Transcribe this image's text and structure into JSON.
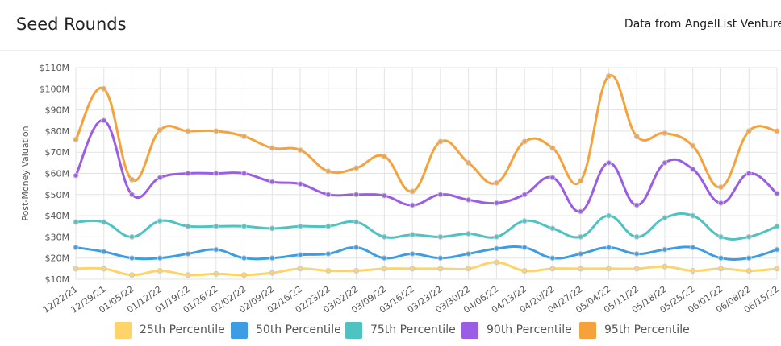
{
  "header": {
    "title": "Seed Rounds",
    "source": "Data from AngelList Venture"
  },
  "chart_data": {
    "type": "line",
    "title": "Seed Rounds",
    "xlabel": "",
    "ylabel": "Post-Money Valuation",
    "ylim": [
      10,
      110
    ],
    "yticks": [
      "$10M",
      "$20M",
      "$30M",
      "$40M",
      "$50M",
      "$60M",
      "$70M",
      "$80M",
      "$90M",
      "$100M",
      "$110M"
    ],
    "categories": [
      "12/22/21",
      "12/29/21",
      "01/05/22",
      "01/12/22",
      "01/19/22",
      "01/26/22",
      "02/02/22",
      "02/09/22",
      "02/16/22",
      "02/23/22",
      "03/02/22",
      "03/09/22",
      "03/16/22",
      "03/23/22",
      "03/30/22",
      "04/06/22",
      "04/13/22",
      "04/20/22",
      "04/27/22",
      "05/04/22",
      "05/11/22",
      "05/18/22",
      "05/25/22",
      "06/01/22",
      "06/08/22",
      "06/15/22"
    ],
    "grid": true,
    "legend_position": "bottom",
    "series": [
      {
        "name": "25th Percentile",
        "color": "#fdd36a",
        "values": [
          15,
          15,
          12,
          14,
          12,
          12.5,
          12,
          13,
          15,
          14,
          14,
          15,
          15,
          15,
          15,
          18,
          14,
          15,
          15,
          15,
          15,
          16,
          14,
          15,
          14,
          15
        ]
      },
      {
        "name": "50th Percentile",
        "color": "#3d9de4",
        "values": [
          25,
          23,
          20,
          20,
          22,
          24,
          20,
          20,
          21.5,
          22,
          25,
          20,
          22,
          20,
          22,
          24.5,
          25,
          20,
          22,
          25,
          22,
          24,
          25,
          20,
          20,
          24
        ]
      },
      {
        "name": "75th Percentile",
        "color": "#4fc2c2",
        "values": [
          37,
          37,
          30,
          37.5,
          35,
          35,
          35,
          34,
          35,
          35,
          37,
          30,
          31,
          30,
          31.5,
          30,
          37.5,
          34,
          30,
          40,
          30,
          39,
          40,
          30,
          30,
          35
        ]
      },
      {
        "name": "90th Percentile",
        "color": "#9b5de5",
        "values": [
          59,
          85,
          50,
          58,
          60,
          60,
          60,
          56,
          55,
          50,
          50,
          49.5,
          45,
          50,
          47.5,
          46,
          50,
          58,
          42,
          65,
          45,
          65,
          62,
          46,
          60,
          50.5
        ]
      },
      {
        "name": "95th Percentile",
        "color": "#f6a23c",
        "values": [
          76,
          100,
          57,
          80.5,
          80,
          80,
          77.5,
          72,
          71,
          61,
          62.5,
          68,
          51.5,
          75,
          65,
          55.5,
          75,
          72,
          56.5,
          106,
          77.5,
          79,
          73,
          53.5,
          80,
          80
        ]
      }
    ]
  }
}
